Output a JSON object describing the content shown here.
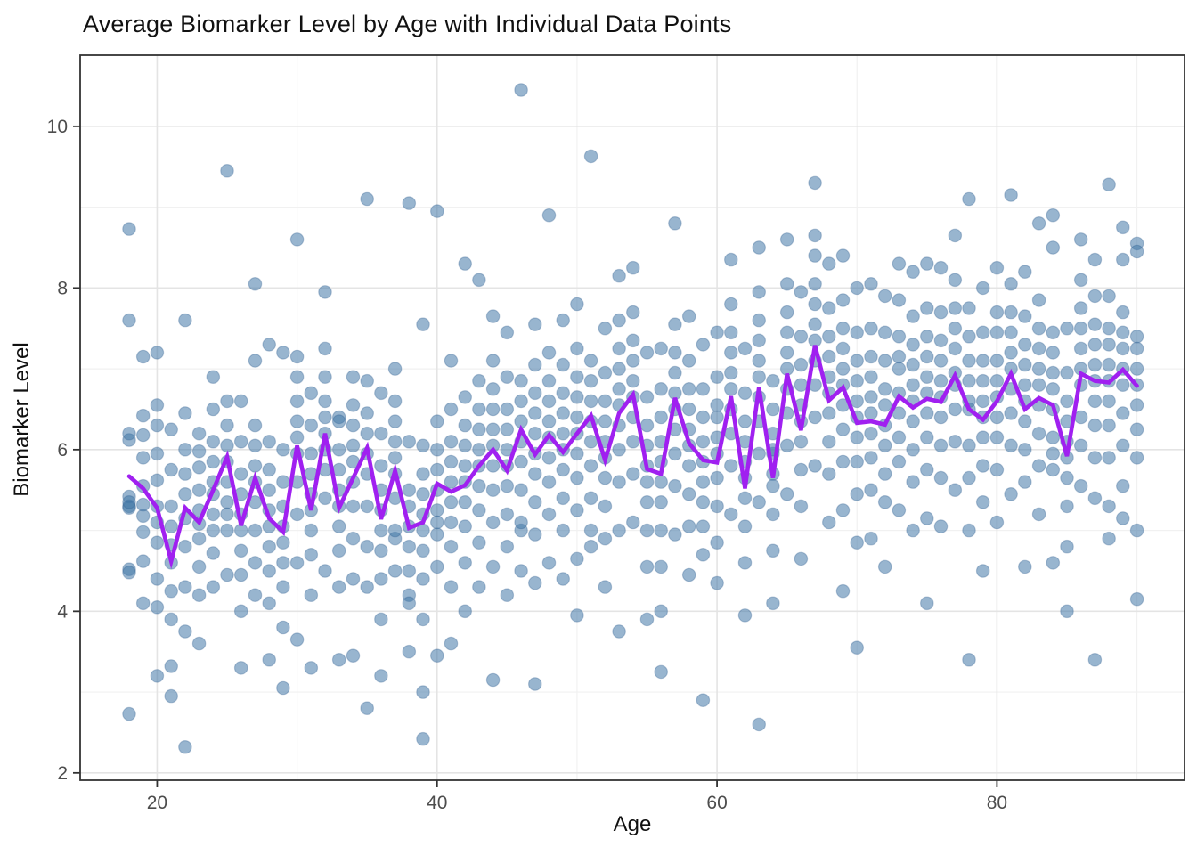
{
  "chart_data": {
    "type": "scatter",
    "title": "Average Biomarker Level by Age with Individual Data Points",
    "xlabel": "Age",
    "ylabel": "Biomarker Level",
    "xlim": [
      14.5,
      93.4
    ],
    "ylim": [
      1.91,
      10.88
    ],
    "x_major_ticks": [
      20,
      40,
      60,
      80
    ],
    "x_minor_gridlines": [
      30,
      50,
      70,
      90
    ],
    "y_major_ticks": [
      2,
      4,
      6,
      8,
      10
    ],
    "y_minor_gridlines": [
      3,
      5,
      7,
      9
    ],
    "grid": "major+minor",
    "legend_position": "none",
    "colors": {
      "point_fill": "#4478A8",
      "point_opacity": 0.55,
      "point_stroke": "#2E5E8E",
      "mean_line": "#A020F0",
      "panel_border": "#333333",
      "grid_major": "#E4E4E4",
      "grid_minor": "#F1F1F1",
      "tick_label": "#4D4D4D",
      "tick_mark": "#333333"
    },
    "points_by_age": [
      [
        18,
        5.42,
        8.73,
        4.52,
        5.3,
        6.12,
        2.73,
        5.28,
        4.48,
        7.6,
        5.35,
        6.2
      ],
      [
        19,
        5.9,
        4.62,
        6.42,
        5.18,
        5.55,
        4.1,
        6.18,
        5.32,
        7.15,
        4.98
      ],
      [
        20,
        4.85,
        6.55,
        5.1,
        3.2,
        5.62,
        4.4,
        5.95,
        5.3,
        7.2,
        4.05,
        6.3
      ],
      [
        21,
        4.6,
        3.32,
        5.05,
        4.25,
        5.75,
        2.95,
        4.82,
        5.3,
        6.25,
        3.9
      ],
      [
        22,
        5.45,
        2.32,
        5.7,
        4.3,
        6.0,
        4.8,
        6.45,
        5.15,
        7.6,
        3.75
      ],
      [
        23,
        5.08,
        4.55,
        5.98,
        4.2,
        5.5,
        3.6,
        6.2,
        4.9,
        5.78,
        5.25
      ],
      [
        24,
        5.6,
        4.3,
        6.1,
        5.2,
        6.5,
        4.72,
        5.85,
        5.0,
        6.9,
        5.45
      ],
      [
        25,
        6.05,
        4.45,
        6.6,
        5.35,
        9.45,
        5.0,
        5.85,
        5.6,
        6.3,
        5.2
      ],
      [
        26,
        4.75,
        6.1,
        4.0,
        5.45,
        3.3,
        5.2,
        6.6,
        4.45,
        5.7,
        5.0
      ],
      [
        27,
        5.8,
        4.2,
        6.3,
        5.35,
        8.05,
        4.6,
        6.05,
        5.0,
        7.1,
        5.6
      ],
      [
        28,
        5.05,
        7.3,
        4.5,
        5.75,
        3.4,
        5.25,
        6.1,
        4.8,
        5.5,
        4.1
      ],
      [
        29,
        4.85,
        3.05,
        5.6,
        4.3,
        6.0,
        3.8,
        5.3,
        4.6,
        7.2,
        5.05
      ],
      [
        30,
        6.15,
        4.6,
        6.9,
        5.6,
        8.6,
        5.2,
        6.6,
        5.95,
        7.15,
        6.35,
        3.65
      ],
      [
        31,
        5.25,
        6.7,
        4.2,
        5.7,
        3.3,
        5.45,
        6.3,
        4.7,
        5.95,
        5.0
      ],
      [
        32,
        6.2,
        4.5,
        6.9,
        5.75,
        7.95,
        5.4,
        6.6,
        6.0,
        7.25,
        6.4
      ],
      [
        33,
        5.3,
        3.4,
        6.0,
        4.75,
        6.4,
        4.3,
        5.75,
        5.05,
        6.35,
        5.5
      ],
      [
        34,
        5.85,
        3.45,
        6.3,
        4.9,
        6.9,
        4.4,
        6.05,
        5.3,
        6.55,
        5.6
      ],
      [
        35,
        6.2,
        2.8,
        6.85,
        5.3,
        9.1,
        4.3,
        5.95,
        4.8,
        6.45,
        5.7
      ],
      [
        36,
        5.0,
        6.7,
        4.4,
        5.5,
        3.2,
        5.25,
        6.2,
        4.75,
        5.8,
        3.9
      ],
      [
        37,
        5.9,
        4.5,
        6.35,
        5.4,
        7.0,
        4.9,
        6.1,
        5.0,
        6.6,
        5.7
      ],
      [
        38,
        5.3,
        9.05,
        4.2,
        5.5,
        3.5,
        4.8,
        6.1,
        4.5,
        5.05,
        4.1
      ],
      [
        39,
        5.2,
        2.42,
        5.7,
        4.4,
        6.05,
        3.9,
        5.45,
        4.75,
        7.55,
        5.0,
        3.0
      ],
      [
        40,
        5.5,
        8.95,
        4.55,
        5.75,
        6.35,
        4.95,
        6.0,
        5.25,
        3.45,
        5.1
      ],
      [
        41,
        5.6,
        3.6,
        6.1,
        4.8,
        6.5,
        4.3,
        5.85,
        5.1,
        7.1,
        5.35
      ],
      [
        42,
        5.8,
        4.0,
        6.3,
        5.35,
        8.3,
        4.6,
        6.05,
        5.05,
        6.65,
        5.6
      ],
      [
        43,
        6.0,
        4.3,
        6.5,
        5.55,
        8.1,
        4.85,
        6.25,
        5.25,
        6.85,
        5.8
      ],
      [
        44,
        6.25,
        3.15,
        6.75,
        5.5,
        7.65,
        4.55,
        6.05,
        5.1,
        7.1,
        5.8,
        6.5
      ],
      [
        45,
        5.8,
        4.2,
        6.25,
        5.2,
        7.45,
        4.8,
        6.0,
        5.55,
        6.9,
        6.5
      ],
      [
        46,
        6.1,
        4.5,
        6.6,
        5.5,
        10.45,
        5.0,
        6.35,
        5.85,
        6.85,
        5.1
      ],
      [
        47,
        5.95,
        3.1,
        6.45,
        5.35,
        7.55,
        4.35,
        6.2,
        4.95,
        7.05,
        5.7,
        6.7
      ],
      [
        48,
        6.15,
        4.6,
        6.6,
        5.6,
        8.9,
        5.2,
        6.35,
        5.9,
        7.2,
        6.85
      ],
      [
        49,
        6.0,
        4.4,
        6.45,
        5.4,
        7.6,
        5.0,
        6.2,
        5.75,
        7.05,
        6.7
      ],
      [
        50,
        6.2,
        3.95,
        6.65,
        5.65,
        7.8,
        5.25,
        6.4,
        5.95,
        7.25,
        6.9,
        4.65
      ],
      [
        51,
        6.35,
        4.8,
        6.85,
        5.8,
        9.63,
        5.4,
        6.6,
        6.1,
        7.1,
        5.0
      ],
      [
        52,
        5.9,
        4.3,
        6.35,
        5.3,
        7.5,
        4.9,
        6.1,
        5.65,
        6.95,
        6.6
      ],
      [
        53,
        6.55,
        3.75,
        7.0,
        6.0,
        8.15,
        5.6,
        6.75,
        6.3,
        7.6,
        5.0,
        7.25
      ],
      [
        54,
        6.65,
        5.1,
        7.1,
        6.1,
        8.25,
        5.7,
        6.85,
        6.4,
        7.7,
        7.35
      ],
      [
        55,
        5.8,
        3.9,
        6.3,
        5.35,
        7.2,
        4.55,
        6.05,
        5.6,
        6.65,
        5.0
      ],
      [
        56,
        5.6,
        3.25,
        6.1,
        5.0,
        7.25,
        4.0,
        5.85,
        5.35,
        6.75,
        4.55,
        6.4
      ],
      [
        57,
        6.7,
        4.95,
        7.2,
        6.25,
        8.8,
        5.55,
        6.95,
        6.5,
        7.55,
        5.95
      ],
      [
        58,
        6.05,
        4.45,
        6.5,
        5.45,
        7.65,
        5.05,
        6.25,
        5.8,
        7.1,
        6.75
      ],
      [
        59,
        5.85,
        2.9,
        6.4,
        5.35,
        7.3,
        4.7,
        6.1,
        5.6,
        6.75,
        5.05
      ],
      [
        60,
        5.95,
        4.35,
        6.4,
        5.3,
        7.45,
        4.85,
        6.15,
        5.65,
        6.9,
        6.55
      ],
      [
        61,
        6.75,
        5.2,
        7.2,
        6.2,
        8.35,
        5.8,
        6.95,
        6.5,
        7.8,
        7.45
      ],
      [
        62,
        5.65,
        3.95,
        6.1,
        5.05,
        7.25,
        4.6,
        5.85,
        5.4,
        6.7,
        6.35
      ],
      [
        63,
        6.9,
        2.6,
        7.35,
        6.35,
        8.5,
        5.95,
        7.1,
        6.65,
        7.95,
        5.35,
        7.6
      ],
      [
        64,
        5.7,
        4.1,
        6.2,
        5.2,
        6.85,
        4.75,
        5.95,
        5.55,
        6.5,
        6.0
      ],
      [
        65,
        7.0,
        5.45,
        7.45,
        6.45,
        8.6,
        6.05,
        7.2,
        6.75,
        8.05,
        7.7
      ],
      [
        66,
        6.35,
        4.65,
        6.8,
        5.75,
        7.95,
        5.3,
        6.55,
        6.1,
        7.4,
        7.05
      ],
      [
        67,
        7.35,
        5.8,
        7.8,
        6.8,
        9.3,
        6.4,
        7.55,
        7.1,
        8.4,
        8.05,
        8.65
      ],
      [
        68,
        6.7,
        5.1,
        7.15,
        6.1,
        8.3,
        5.7,
        6.9,
        6.45,
        7.75,
        7.4
      ],
      [
        69,
        6.8,
        4.25,
        7.25,
        6.25,
        8.4,
        5.85,
        7.0,
        6.55,
        7.85,
        7.5,
        5.25
      ],
      [
        70,
        6.4,
        3.55,
        6.85,
        5.85,
        8.0,
        5.45,
        6.6,
        6.15,
        7.45,
        7.1,
        4.85
      ],
      [
        71,
        6.45,
        4.9,
        6.9,
        5.9,
        8.05,
        5.5,
        6.65,
        6.2,
        7.5,
        7.15
      ],
      [
        72,
        6.3,
        4.55,
        6.75,
        5.7,
        7.9,
        5.35,
        6.55,
        6.05,
        7.45,
        7.1
      ],
      [
        73,
        6.7,
        5.25,
        7.15,
        6.15,
        8.3,
        5.85,
        7.0,
        6.45,
        7.85,
        7.4
      ],
      [
        74,
        6.6,
        5.0,
        7.05,
        6.0,
        8.2,
        5.6,
        6.8,
        6.35,
        7.65,
        7.3
      ],
      [
        75,
        6.7,
        4.1,
        7.15,
        6.15,
        8.3,
        5.75,
        6.9,
        6.45,
        7.75,
        7.4,
        5.15
      ],
      [
        76,
        6.65,
        5.05,
        7.1,
        6.05,
        8.25,
        5.65,
        6.85,
        6.4,
        7.7,
        7.35
      ],
      [
        77,
        6.95,
        5.5,
        7.5,
        6.5,
        8.65,
        6.1,
        7.25,
        6.8,
        8.1,
        7.75
      ],
      [
        78,
        6.5,
        3.4,
        6.85,
        5.65,
        9.1,
        5.0,
        6.6,
        6.05,
        7.4,
        7.1,
        7.75
      ],
      [
        79,
        6.4,
        4.5,
        6.85,
        5.8,
        8.0,
        5.35,
        6.6,
        6.15,
        7.45,
        7.1
      ],
      [
        80,
        6.65,
        5.1,
        7.1,
        6.15,
        8.25,
        5.75,
        6.85,
        6.4,
        7.7,
        7.45
      ],
      [
        81,
        7.0,
        5.45,
        7.45,
        6.45,
        9.15,
        6.05,
        7.2,
        6.75,
        8.05,
        7.7
      ],
      [
        82,
        6.6,
        4.55,
        7.05,
        6.0,
        8.2,
        5.6,
        6.8,
        6.35,
        7.65,
        7.3
      ],
      [
        83,
        6.8,
        5.2,
        7.25,
        6.2,
        8.8,
        5.8,
        7.0,
        6.55,
        7.85,
        7.5
      ],
      [
        84,
        6.75,
        4.6,
        7.2,
        6.15,
        8.9,
        5.75,
        6.95,
        6.5,
        8.5,
        7.45,
        5.95
      ],
      [
        85,
        5.9,
        4.0,
        6.35,
        5.3,
        7.5,
        4.8,
        6.1,
        5.65,
        6.95,
        6.6
      ],
      [
        86,
        7.0,
        5.55,
        7.5,
        6.4,
        8.6,
        6.05,
        7.25,
        6.8,
        8.1,
        7.75
      ],
      [
        87,
        6.85,
        3.4,
        7.3,
        6.3,
        8.35,
        5.9,
        7.05,
        6.6,
        7.9,
        7.55,
        5.4
      ],
      [
        88,
        6.85,
        4.9,
        7.3,
        6.3,
        9.28,
        5.9,
        7.05,
        6.6,
        7.9,
        7.5,
        5.3
      ],
      [
        89,
        7.0,
        5.15,
        7.45,
        6.45,
        8.75,
        6.05,
        7.25,
        6.8,
        8.35,
        7.7,
        5.55
      ],
      [
        90,
        6.8,
        4.15,
        7.25,
        6.25,
        8.55,
        5.9,
        7.0,
        6.55,
        8.45,
        7.4,
        5.0
      ]
    ],
    "mean_line": [
      [
        18,
        5.67
      ],
      [
        19,
        5.52
      ],
      [
        20,
        5.28
      ],
      [
        21,
        4.62
      ],
      [
        22,
        5.28
      ],
      [
        23,
        5.1
      ],
      [
        24,
        5.5
      ],
      [
        25,
        5.91
      ],
      [
        26,
        5.06
      ],
      [
        27,
        5.65
      ],
      [
        28,
        5.15
      ],
      [
        29,
        4.98
      ],
      [
        30,
        6.05
      ],
      [
        31,
        5.25
      ],
      [
        32,
        6.2
      ],
      [
        33,
        5.28
      ],
      [
        34,
        5.65
      ],
      [
        35,
        6.02
      ],
      [
        36,
        5.14
      ],
      [
        37,
        5.74
      ],
      [
        38,
        5.03
      ],
      [
        39,
        5.1
      ],
      [
        40,
        5.58
      ],
      [
        41,
        5.48
      ],
      [
        42,
        5.56
      ],
      [
        43,
        5.8
      ],
      [
        44,
        6.0
      ],
      [
        45,
        5.74
      ],
      [
        46,
        6.25
      ],
      [
        47,
        5.94
      ],
      [
        48,
        6.18
      ],
      [
        49,
        5.97
      ],
      [
        50,
        6.2
      ],
      [
        51,
        6.42
      ],
      [
        52,
        5.87
      ],
      [
        53,
        6.45
      ],
      [
        54,
        6.68
      ],
      [
        55,
        5.76
      ],
      [
        56,
        5.7
      ],
      [
        57,
        6.64
      ],
      [
        58,
        6.08
      ],
      [
        59,
        5.87
      ],
      [
        60,
        5.84
      ],
      [
        61,
        6.66
      ],
      [
        62,
        5.52
      ],
      [
        63,
        6.77
      ],
      [
        64,
        5.65
      ],
      [
        65,
        6.94
      ],
      [
        66,
        6.24
      ],
      [
        67,
        7.29
      ],
      [
        68,
        6.61
      ],
      [
        69,
        6.77
      ],
      [
        70,
        6.33
      ],
      [
        71,
        6.35
      ],
      [
        72,
        6.31
      ],
      [
        73,
        6.66
      ],
      [
        74,
        6.52
      ],
      [
        75,
        6.63
      ],
      [
        76,
        6.59
      ],
      [
        77,
        6.92
      ],
      [
        78,
        6.5
      ],
      [
        79,
        6.37
      ],
      [
        80,
        6.6
      ],
      [
        81,
        6.94
      ],
      [
        82,
        6.5
      ],
      [
        83,
        6.64
      ],
      [
        84,
        6.55
      ],
      [
        85,
        5.92
      ],
      [
        86,
        6.94
      ],
      [
        87,
        6.85
      ],
      [
        88,
        6.83
      ],
      [
        89,
        6.99
      ],
      [
        90,
        6.79
      ]
    ]
  }
}
